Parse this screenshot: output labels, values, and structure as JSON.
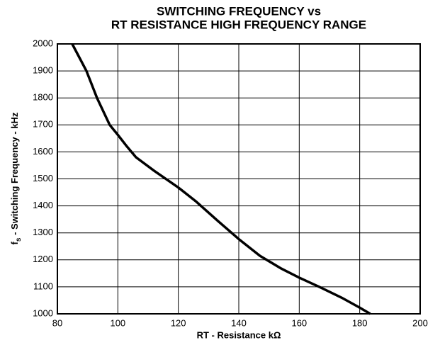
{
  "chart_data": {
    "type": "line",
    "title": [
      "SWITCHING FREQUENCY vs",
      "RT RESISTANCE HIGH FREQUENCY RANGE"
    ],
    "xlabel": "RT - Resistance kΩ",
    "ylabel": {
      "symbol": "f",
      "subscript": "s",
      "text": " - Switching Frequency - kHz"
    },
    "x": [
      84.9,
      89.6,
      93.1,
      97.3,
      100,
      103,
      106,
      112,
      120,
      126,
      133,
      140,
      147,
      154,
      160,
      167,
      174,
      180,
      183.5
    ],
    "series": [
      {
        "color": "#000000",
        "values": [
          2000,
          1900,
          1800,
          1700,
          1663,
          1620,
          1580,
          1530,
          1468,
          1415,
          1345,
          1277,
          1215,
          1168,
          1134,
          1098,
          1060,
          1023,
          1000
        ]
      }
    ],
    "xlim": [
      80,
      200
    ],
    "xticks": [
      80,
      100,
      120,
      140,
      160,
      180,
      200
    ],
    "ylim": [
      1000,
      2000
    ],
    "yticks": [
      1000,
      1100,
      1200,
      1300,
      1400,
      1500,
      1600,
      1700,
      1800,
      1900,
      2000
    ],
    "grid": true
  }
}
